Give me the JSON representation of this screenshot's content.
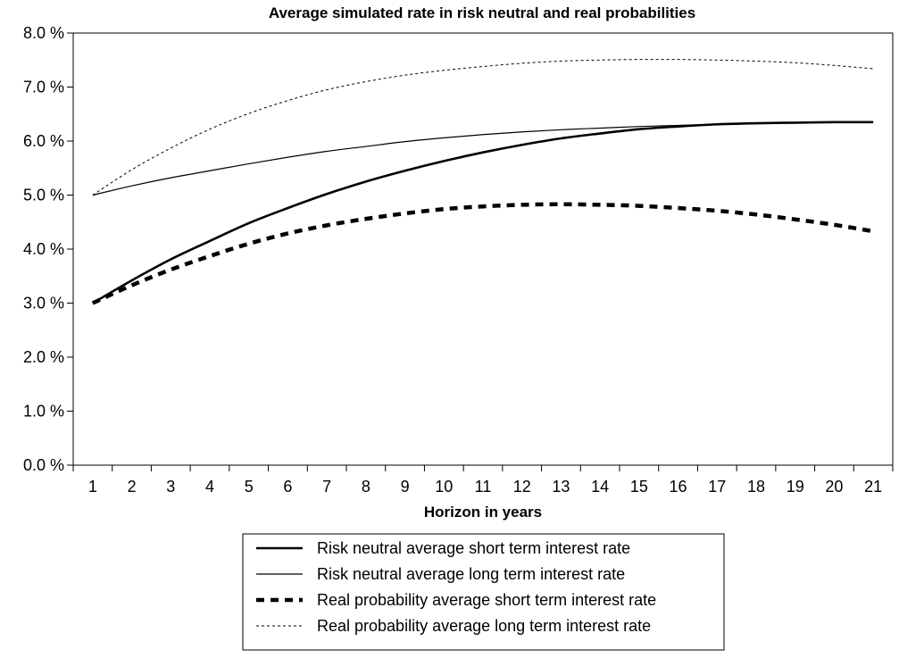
{
  "chart_data": {
    "type": "line",
    "title": "Average simulated rate in risk neutral and real probabilities",
    "xlabel": "Horizon in years",
    "ylabel": "",
    "x": [
      1,
      2,
      3,
      4,
      5,
      6,
      7,
      8,
      9,
      10,
      11,
      12,
      13,
      14,
      15,
      16,
      17,
      18,
      19,
      20,
      21
    ],
    "x_tick_labels": [
      "1",
      "2",
      "3",
      "4",
      "5",
      "6",
      "7",
      "8",
      "9",
      "10",
      "11",
      "12",
      "13",
      "14",
      "15",
      "16",
      "17",
      "18",
      "19",
      "20",
      "21"
    ],
    "ylim": [
      0.0,
      8.0
    ],
    "y_ticks": [
      0,
      1,
      2,
      3,
      4,
      5,
      6,
      7,
      8
    ],
    "y_tick_labels": [
      "0.0 %",
      "1.0 %",
      "2.0 %",
      "3.0 %",
      "4.0 %",
      "5.0 %",
      "6.0 %",
      "7.0 %",
      "8.0 %"
    ],
    "grid": false,
    "legend_position": "bottom",
    "series": [
      {
        "name": "Risk neutral average short term interest rate",
        "style": "thick-solid",
        "color": "#000000",
        "values": [
          3.0,
          3.42,
          3.81,
          4.15,
          4.48,
          4.76,
          5.02,
          5.25,
          5.45,
          5.63,
          5.79,
          5.93,
          6.05,
          6.14,
          6.22,
          6.27,
          6.31,
          6.33,
          6.34,
          6.35,
          6.35
        ]
      },
      {
        "name": "Risk neutral average long term interest rate",
        "style": "thin-solid",
        "color": "#000000",
        "values": [
          5.0,
          5.17,
          5.32,
          5.45,
          5.58,
          5.7,
          5.81,
          5.9,
          5.99,
          6.06,
          6.12,
          6.17,
          6.21,
          6.24,
          6.27,
          6.29,
          6.31,
          6.33,
          6.34,
          6.35,
          6.35
        ]
      },
      {
        "name": "Real probability average short term interest rate",
        "style": "thick-dashed",
        "color": "#000000",
        "values": [
          3.0,
          3.33,
          3.62,
          3.87,
          4.1,
          4.29,
          4.44,
          4.56,
          4.66,
          4.74,
          4.79,
          4.82,
          4.83,
          4.82,
          4.8,
          4.76,
          4.71,
          4.64,
          4.55,
          4.45,
          4.33
        ]
      },
      {
        "name": "Real probability average long term interest rate",
        "style": "thin-dotted",
        "color": "#000000",
        "values": [
          5.0,
          5.47,
          5.87,
          6.22,
          6.51,
          6.75,
          6.95,
          7.1,
          7.22,
          7.31,
          7.38,
          7.44,
          7.48,
          7.5,
          7.51,
          7.51,
          7.5,
          7.48,
          7.45,
          7.4,
          7.34
        ]
      }
    ]
  }
}
